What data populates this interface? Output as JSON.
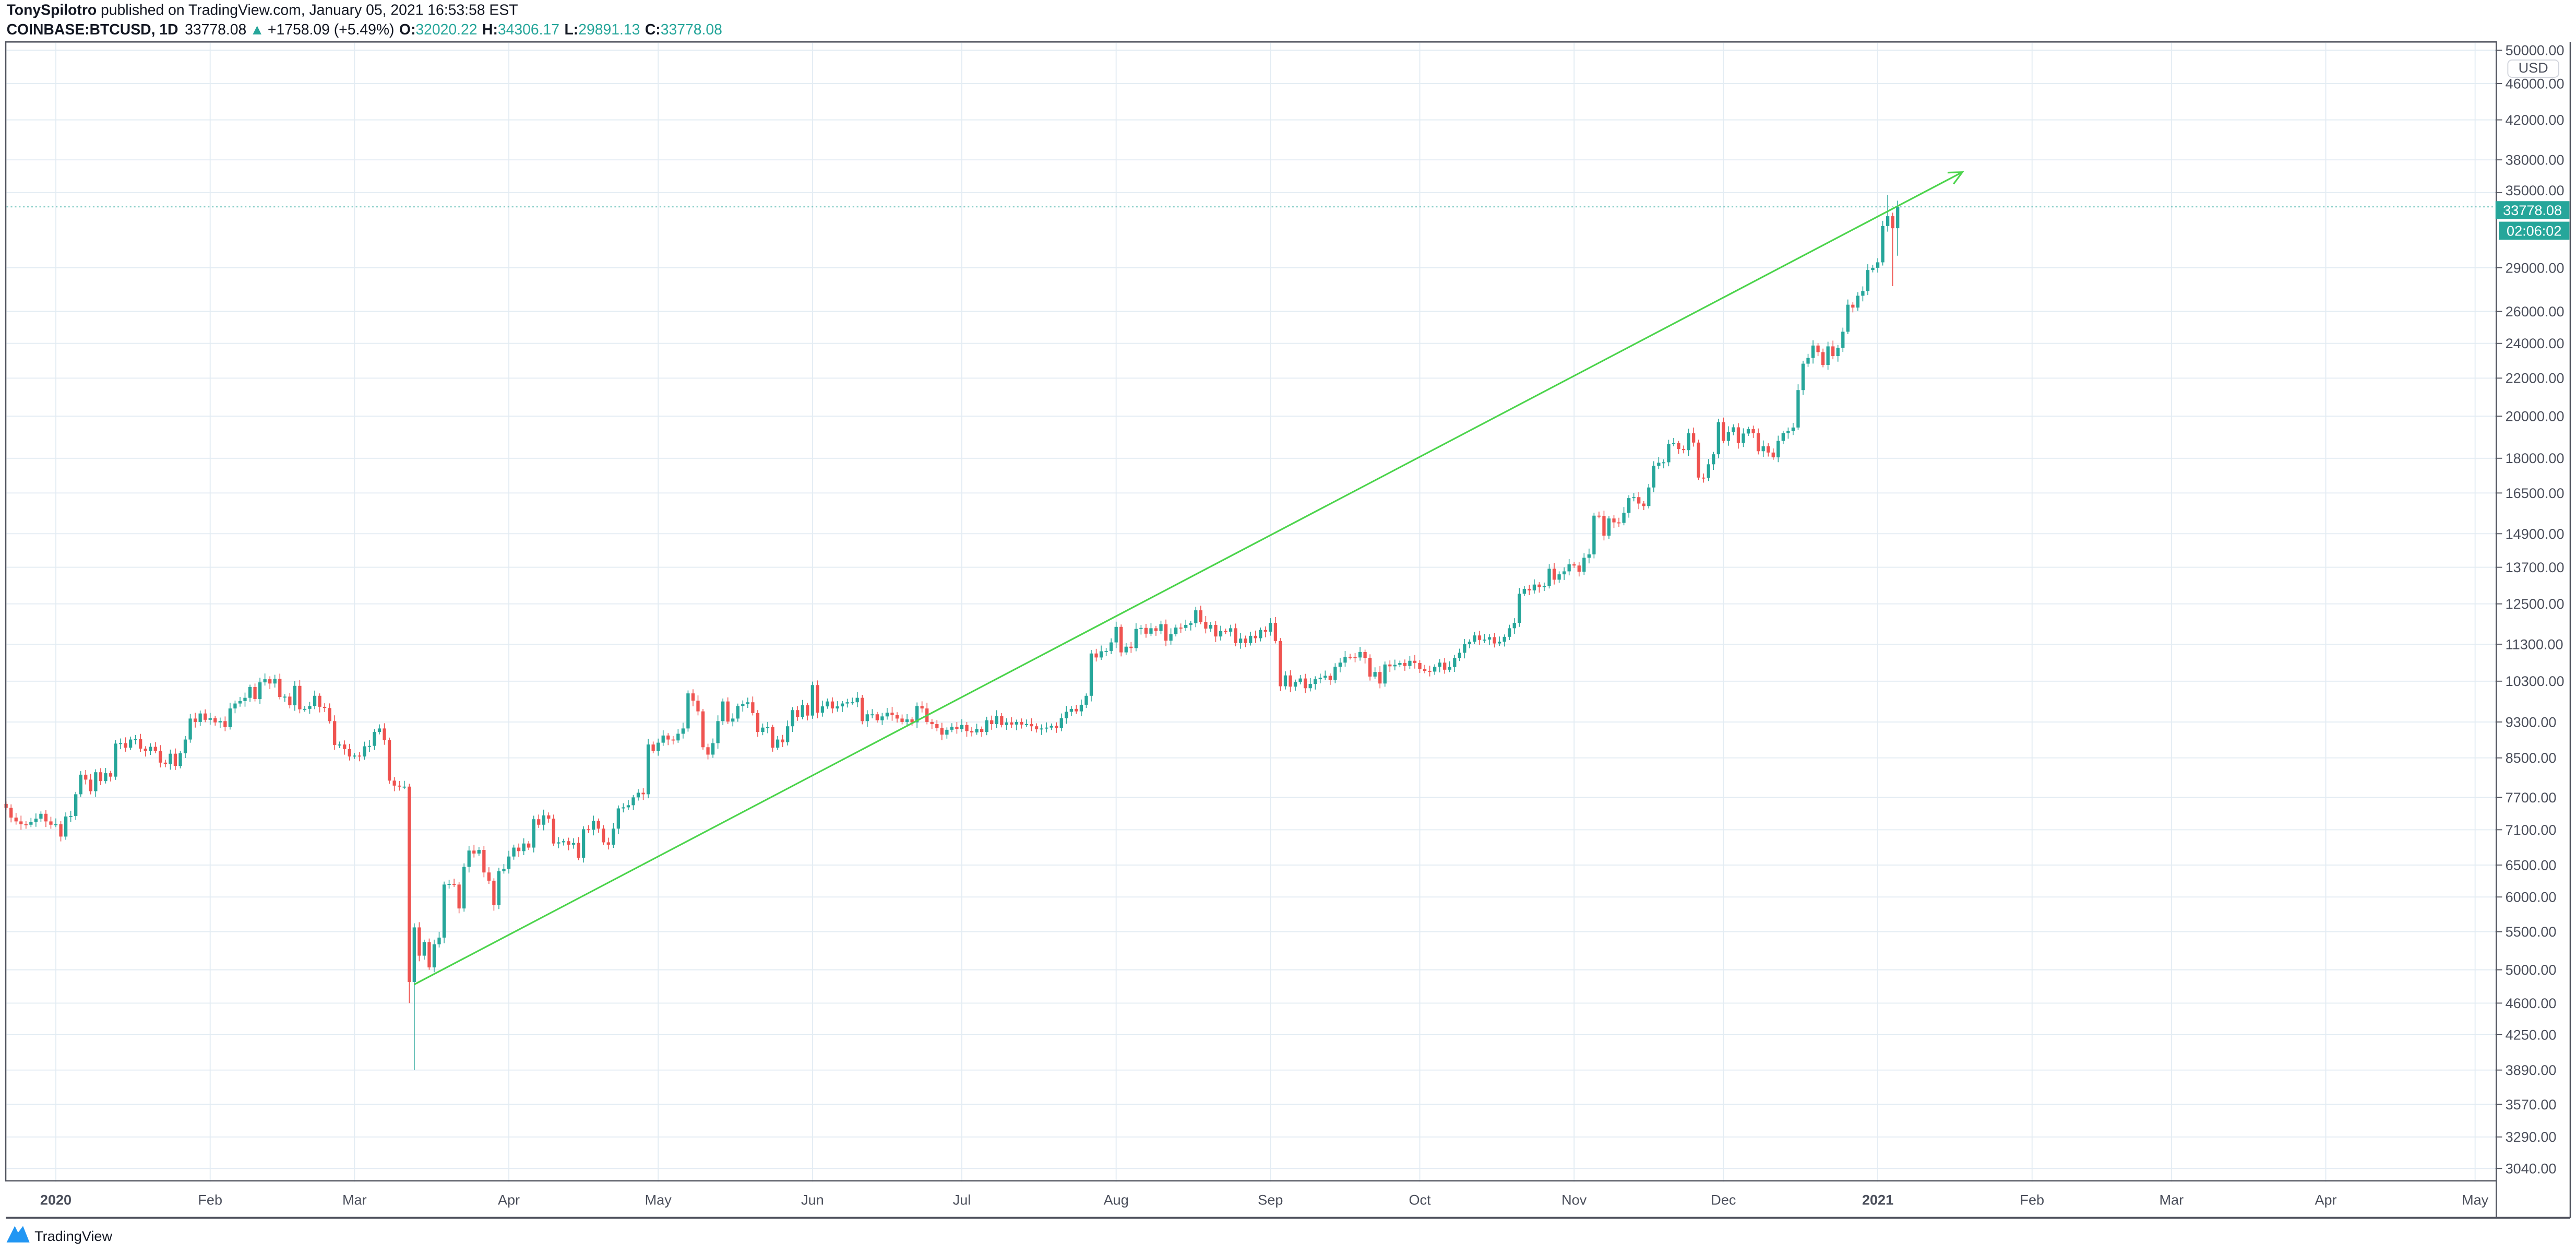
{
  "header": {
    "author": "TonySpilotro",
    "published": " published on TradingView.com, January 05, 2021 16:53:58 EST",
    "symbol": "COINBASE:BTCUSD, 1D",
    "last": "33778.08",
    "arrow": "▲",
    "change": "+1758.09 (+5.49%)",
    "o_label": "O:",
    "o": "32020.22",
    "h_label": "H:",
    "h": "34306.17",
    "l_label": "L:",
    "l": "29891.13",
    "c_label": "C:",
    "c": "33778.08"
  },
  "price_axis": {
    "currency": "USD",
    "last_price_label": "33778.08",
    "countdown": "02:06:02"
  },
  "footer": {
    "logo_text": "TradingView"
  },
  "colors": {
    "up": "#26a69a",
    "down": "#ef5350",
    "trendline": "#4cd44c",
    "grid": "#e3ecf3",
    "price_label": "#26a69a"
  },
  "chart_data": {
    "type": "candlestick",
    "title": "",
    "y_scale": "log",
    "ylim": [
      2950,
      51000
    ],
    "grid": true,
    "y_ticks": [
      "50000.00",
      "46000.00",
      "42000.00",
      "38000.00",
      "35000.00",
      "29000.00",
      "26000.00",
      "24000.00",
      "22000.00",
      "20000.00",
      "18000.00",
      "16500.00",
      "14900.00",
      "13700.00",
      "12500.00",
      "11300.00",
      "10300.00",
      "9300.00",
      "8500.00",
      "7700.00",
      "7100.00",
      "6500.00",
      "6000.00",
      "5500.00",
      "5000.00",
      "4600.00",
      "4250.00",
      "3890.00",
      "3570.00",
      "3290.00",
      "3040.00"
    ],
    "x_ticks": [
      {
        "label": "2020",
        "date": "2020-01-01"
      },
      {
        "label": "Feb",
        "date": "2020-02-01"
      },
      {
        "label": "Mar",
        "date": "2020-03-01"
      },
      {
        "label": "Apr",
        "date": "2020-04-01"
      },
      {
        "label": "May",
        "date": "2020-05-01"
      },
      {
        "label": "Jun",
        "date": "2020-06-01"
      },
      {
        "label": "Jul",
        "date": "2020-07-01"
      },
      {
        "label": "Aug",
        "date": "2020-08-01"
      },
      {
        "label": "Sep",
        "date": "2020-09-01"
      },
      {
        "label": "Oct",
        "date": "2020-10-01"
      },
      {
        "label": "Nov",
        "date": "2020-11-01"
      },
      {
        "label": "Dec",
        "date": "2020-12-01"
      },
      {
        "label": "2021",
        "date": "2021-01-01"
      },
      {
        "label": "Feb",
        "date": "2021-02-01"
      },
      {
        "label": "Mar",
        "date": "2021-03-01"
      },
      {
        "label": "Apr",
        "date": "2021-04-01"
      },
      {
        "label": "May",
        "date": "2021-05-01"
      }
    ],
    "first_date": "2019-12-22",
    "daily_close": [
      7500,
      7320,
      7250,
      7200,
      7190,
      7240,
      7300,
      7390,
      7250,
      7190,
      7200,
      6980,
      7340,
      7350,
      7760,
      8150,
      8050,
      7820,
      8200,
      8020,
      8180,
      8110,
      8810,
      8820,
      8720,
      8900,
      8910,
      8700,
      8650,
      8740,
      8650,
      8400,
      8370,
      8590,
      8330,
      8600,
      8900,
      9380,
      9300,
      9500,
      9350,
      9390,
      9290,
      9320,
      9180,
      9620,
      9740,
      9800,
      9880,
      10150,
      9850,
      10270,
      10350,
      10240,
      10360,
      9900,
      9910,
      9700,
      10180,
      9600,
      9610,
      9680,
      9930,
      9660,
      9630,
      9320,
      8780,
      8790,
      8690,
      8530,
      8550,
      8530,
      8750,
      8760,
      9070,
      9150,
      8890,
      8030,
      7930,
      7910,
      7910,
      4850,
      5560,
      5180,
      5360,
      5030,
      5330,
      5420,
      6190,
      6200,
      6190,
      5830,
      6470,
      6740,
      6690,
      6750,
      6380,
      6250,
      5880,
      6400,
      6440,
      6640,
      6790,
      6730,
      6860,
      6790,
      7290,
      7190,
      7360,
      7300,
      6860,
      6880,
      6900,
      6840,
      6870,
      6620,
      7110,
      7100,
      7260,
      7120,
      6880,
      6840,
      7120,
      7490,
      7510,
      7550,
      7700,
      7790,
      7760,
      8790,
      8650,
      8830,
      8990,
      8900,
      8880,
      9030,
      9150,
      9990,
      9810,
      9550,
      8730,
      8570,
      8820,
      9320,
      9790,
      9310,
      9380,
      9680,
      9730,
      9770,
      9510,
      9070,
      9170,
      9180,
      8720,
      8900,
      8840,
      9200,
      9580,
      9420,
      9700,
      9450,
      10200,
      9520,
      9670,
      9790,
      9620,
      9670,
      9740,
      9770,
      9770,
      9880,
      9320,
      9480,
      9480,
      9340,
      9430,
      9520,
      9460,
      9380,
      9300,
      9360,
      9290,
      9680,
      9620,
      9300,
      9250,
      9160,
      9010,
      9120,
      9190,
      9140,
      9230,
      9090,
      9060,
      9140,
      9070,
      9340,
      9250,
      9440,
      9230,
      9290,
      9240,
      9300,
      9240,
      9250,
      9200,
      9130,
      9150,
      9170,
      9210,
      9160,
      9390,
      9540,
      9610,
      9550,
      9710,
      9930,
      11040,
      10930,
      11100,
      11110,
      11350,
      11800,
      11070,
      11230,
      11190,
      11740,
      11770,
      11600,
      11760,
      11680,
      11880,
      11400,
      11590,
      11780,
      11770,
      11860,
      11910,
      12300,
      11950,
      11750,
      11860,
      11520,
      11680,
      11660,
      11760,
      11330,
      11460,
      11330,
      11540,
      11470,
      11710,
      11660,
      11920,
      11390,
      10170,
      10450,
      10160,
      10280,
      10370,
      10120,
      10230,
      10350,
      10390,
      10440,
      10330,
      10680,
      10790,
      10950,
      10940,
      10930,
      11080,
      10920,
      10420,
      10540,
      10240,
      10740,
      10690,
      10730,
      10780,
      10700,
      10840,
      10780,
      10620,
      10570,
      10550,
      10680,
      10790,
      10600,
      10670,
      10920,
      11060,
      11300,
      11370,
      11550,
      11420,
      11430,
      11500,
      11320,
      11370,
      11510,
      11760,
      11920,
      12820,
      12980,
      12930,
      13120,
      13040,
      13070,
      13650,
      13280,
      13460,
      13560,
      13800,
      13760,
      13550,
      14030,
      14150,
      15590,
      15580,
      14830,
      15480,
      15330,
      15310,
      15700,
      16290,
      16330,
      16070,
      15970,
      16730,
      17660,
      17800,
      17820,
      18660,
      18690,
      18420,
      18370,
      19160,
      18720,
      17150,
      17140,
      17730,
      18180,
      19700,
      18800,
      19220,
      19450,
      18700,
      19150,
      19360,
      19170,
      18320,
      18550,
      18260,
      18040,
      18800,
      19170,
      19270,
      19440,
      21350,
      22810,
      23140,
      23870,
      23480,
      22740,
      23820,
      23250,
      23730,
      24710,
      26440,
      26250,
      27040,
      27360,
      28840,
      29000,
      29400,
      32200,
      33000,
      32020,
      33778.08
    ],
    "wick_extremes": [
      {
        "date": "2020-03-13",
        "low": 3890
      },
      {
        "date": "2020-03-12",
        "low": 4600
      },
      {
        "date": "2021-01-03",
        "high": 34800
      },
      {
        "date": "2021-01-04",
        "low": 27700
      },
      {
        "date": "2021-01-05",
        "high": 34306.17,
        "low": 29891.13
      }
    ],
    "trendline": {
      "start": {
        "date": "2020-03-13",
        "price": 4820
      },
      "end": {
        "date": "2021-01-18",
        "price": 36850
      },
      "arrow": true
    }
  }
}
